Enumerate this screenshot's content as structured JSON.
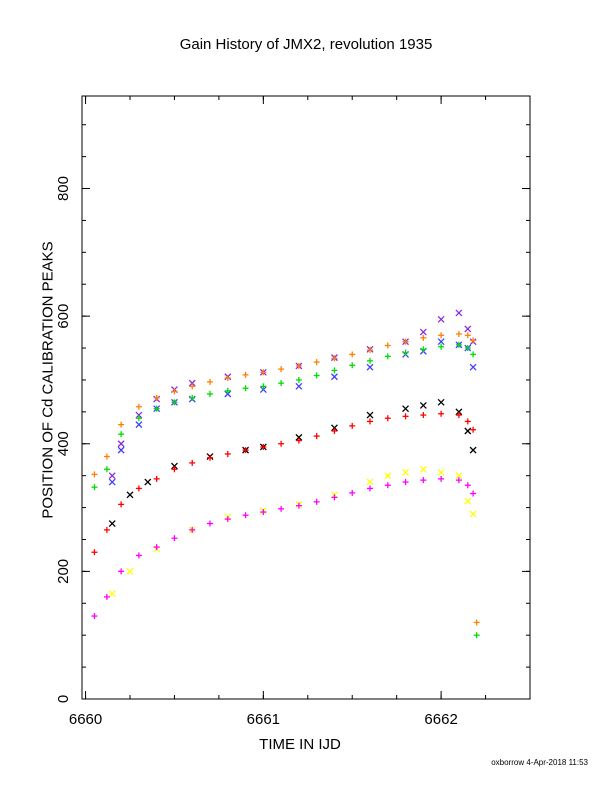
{
  "chart_data": {
    "type": "scatter",
    "title": "Gain History of JMX2, revolution 1935",
    "xlabel": "TIME IN IJD",
    "ylabel": "POSITION OF Cd CALIBRATION PEAKS",
    "xlim": [
      6659.98,
      6662.5
    ],
    "ylim": [
      0,
      945
    ],
    "xticks": [
      6660,
      6661,
      6662
    ],
    "yticks": [
      0,
      200,
      400,
      600,
      800
    ],
    "grid": false,
    "series": [
      {
        "color": "#8a2be2",
        "marker": "x",
        "points": [
          [
            6660.15,
            350
          ],
          [
            6660.2,
            400
          ],
          [
            6660.3,
            445
          ],
          [
            6660.4,
            470
          ],
          [
            6660.5,
            485
          ],
          [
            6660.6,
            495
          ],
          [
            6660.8,
            505
          ],
          [
            6661.0,
            512
          ],
          [
            6661.2,
            522
          ],
          [
            6661.4,
            535
          ],
          [
            6661.6,
            548
          ],
          [
            6661.8,
            560
          ],
          [
            6661.9,
            575
          ],
          [
            6662.0,
            595
          ],
          [
            6662.1,
            605
          ],
          [
            6662.15,
            580
          ],
          [
            6662.18,
            560
          ]
        ]
      },
      {
        "color": "#4040ff",
        "marker": "x",
        "points": [
          [
            6660.15,
            340
          ],
          [
            6660.2,
            390
          ],
          [
            6660.3,
            430
          ],
          [
            6660.4,
            455
          ],
          [
            6660.5,
            465
          ],
          [
            6660.6,
            470
          ],
          [
            6660.8,
            478
          ],
          [
            6661.0,
            485
          ],
          [
            6661.2,
            490
          ],
          [
            6661.4,
            505
          ],
          [
            6661.6,
            520
          ],
          [
            6661.8,
            540
          ],
          [
            6661.9,
            545
          ],
          [
            6662.0,
            560
          ],
          [
            6662.1,
            555
          ],
          [
            6662.15,
            550
          ],
          [
            6662.18,
            520
          ]
        ]
      },
      {
        "color": "#ff8000",
        "marker": "+",
        "points": [
          [
            6660.05,
            352
          ],
          [
            6660.12,
            380
          ],
          [
            6660.2,
            430
          ],
          [
            6660.3,
            458
          ],
          [
            6660.4,
            472
          ],
          [
            6660.5,
            482
          ],
          [
            6660.6,
            490
          ],
          [
            6660.7,
            497
          ],
          [
            6660.8,
            503
          ],
          [
            6660.9,
            508
          ],
          [
            6661.0,
            512
          ],
          [
            6661.1,
            517
          ],
          [
            6661.2,
            522
          ],
          [
            6661.3,
            528
          ],
          [
            6661.4,
            534
          ],
          [
            6661.5,
            540
          ],
          [
            6661.6,
            547
          ],
          [
            6661.7,
            554
          ],
          [
            6661.8,
            560
          ],
          [
            6661.9,
            566
          ],
          [
            6662.0,
            570
          ],
          [
            6662.1,
            572
          ],
          [
            6662.15,
            570
          ],
          [
            6662.18,
            562
          ]
        ]
      },
      {
        "color": "#00dd00",
        "marker": "+",
        "points": [
          [
            6660.05,
            332
          ],
          [
            6660.12,
            360
          ],
          [
            6660.2,
            415
          ],
          [
            6660.3,
            440
          ],
          [
            6660.4,
            455
          ],
          [
            6660.5,
            465
          ],
          [
            6660.6,
            472
          ],
          [
            6660.7,
            478
          ],
          [
            6660.8,
            483
          ],
          [
            6660.9,
            487
          ],
          [
            6661.0,
            490
          ],
          [
            6661.1,
            495
          ],
          [
            6661.2,
            500
          ],
          [
            6661.3,
            507
          ],
          [
            6661.4,
            515
          ],
          [
            6661.5,
            523
          ],
          [
            6661.6,
            530
          ],
          [
            6661.7,
            537
          ],
          [
            6661.8,
            543
          ],
          [
            6661.9,
            548
          ],
          [
            6662.0,
            552
          ],
          [
            6662.1,
            555
          ],
          [
            6662.15,
            550
          ],
          [
            6662.18,
            540
          ]
        ]
      },
      {
        "color": "#000000",
        "marker": "x",
        "points": [
          [
            6660.15,
            275
          ],
          [
            6660.25,
            320
          ],
          [
            6660.35,
            340
          ],
          [
            6660.5,
            365
          ],
          [
            6660.7,
            380
          ],
          [
            6660.9,
            390
          ],
          [
            6661.0,
            395
          ],
          [
            6661.2,
            410
          ],
          [
            6661.4,
            425
          ],
          [
            6661.6,
            445
          ],
          [
            6661.8,
            455
          ],
          [
            6661.9,
            460
          ],
          [
            6662.0,
            465
          ],
          [
            6662.1,
            450
          ],
          [
            6662.15,
            420
          ],
          [
            6662.18,
            390
          ]
        ]
      },
      {
        "color": "#ff0000",
        "marker": "+",
        "points": [
          [
            6660.05,
            230
          ],
          [
            6660.12,
            265
          ],
          [
            6660.2,
            305
          ],
          [
            6660.3,
            330
          ],
          [
            6660.4,
            345
          ],
          [
            6660.5,
            360
          ],
          [
            6660.6,
            370
          ],
          [
            6660.7,
            378
          ],
          [
            6660.8,
            384
          ],
          [
            6660.9,
            390
          ],
          [
            6661.0,
            395
          ],
          [
            6661.1,
            400
          ],
          [
            6661.2,
            405
          ],
          [
            6661.3,
            412
          ],
          [
            6661.4,
            420
          ],
          [
            6661.5,
            428
          ],
          [
            6661.6,
            435
          ],
          [
            6661.7,
            440
          ],
          [
            6661.8,
            443
          ],
          [
            6661.9,
            445
          ],
          [
            6662.0,
            447
          ],
          [
            6662.1,
            445
          ],
          [
            6662.15,
            435
          ],
          [
            6662.18,
            422
          ]
        ]
      },
      {
        "color": "#ffff00",
        "marker": "x",
        "points": [
          [
            6660.15,
            165
          ],
          [
            6660.25,
            200
          ],
          [
            6660.4,
            235
          ],
          [
            6660.6,
            265
          ],
          [
            6660.8,
            285
          ],
          [
            6661.0,
            295
          ],
          [
            6661.2,
            305
          ],
          [
            6661.4,
            320
          ],
          [
            6661.6,
            340
          ],
          [
            6661.7,
            350
          ],
          [
            6661.8,
            355
          ],
          [
            6661.9,
            360
          ],
          [
            6662.0,
            355
          ],
          [
            6662.1,
            350
          ],
          [
            6662.15,
            310
          ],
          [
            6662.18,
            290
          ]
        ]
      },
      {
        "color": "#ff00ff",
        "marker": "+",
        "points": [
          [
            6660.05,
            130
          ],
          [
            6660.12,
            160
          ],
          [
            6660.2,
            200
          ],
          [
            6660.3,
            225
          ],
          [
            6660.4,
            238
          ],
          [
            6660.5,
            252
          ],
          [
            6660.6,
            265
          ],
          [
            6660.7,
            275
          ],
          [
            6660.8,
            282
          ],
          [
            6660.9,
            288
          ],
          [
            6661.0,
            293
          ],
          [
            6661.1,
            298
          ],
          [
            6661.2,
            303
          ],
          [
            6661.3,
            309
          ],
          [
            6661.4,
            316
          ],
          [
            6661.5,
            323
          ],
          [
            6661.6,
            330
          ],
          [
            6661.7,
            335
          ],
          [
            6661.8,
            340
          ],
          [
            6661.9,
            343
          ],
          [
            6662.0,
            345
          ],
          [
            6662.1,
            343
          ],
          [
            6662.15,
            335
          ],
          [
            6662.18,
            322
          ]
        ]
      },
      {
        "color": "#ff8000",
        "marker": "+",
        "points": [
          [
            6662.2,
            120
          ]
        ]
      },
      {
        "color": "#00dd00",
        "marker": "+",
        "points": [
          [
            6662.2,
            100
          ]
        ]
      }
    ]
  },
  "footer": "oxborrow  4-Apr-2018 11:53"
}
